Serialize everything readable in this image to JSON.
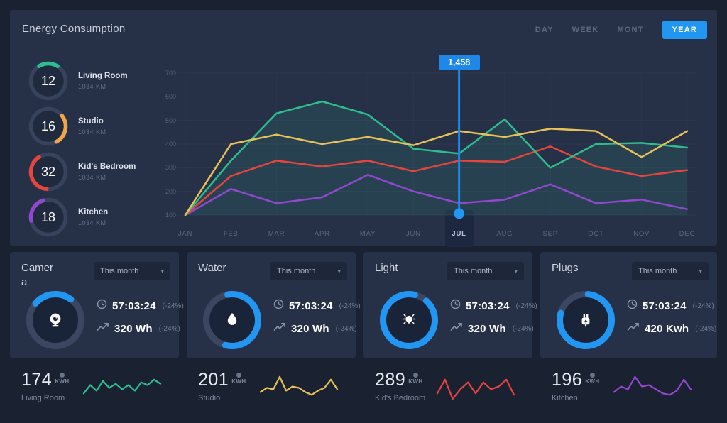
{
  "accent": "#2196f3",
  "header": {
    "title": "Energy Consumption",
    "tabs": [
      {
        "label": "DAY",
        "active": false
      },
      {
        "label": "WEEK",
        "active": false
      },
      {
        "label": "MONT",
        "active": false
      },
      {
        "label": "YEAR",
        "active": true
      }
    ]
  },
  "rooms": [
    {
      "value": "12",
      "name": "Living Room",
      "sub": "1034 KM",
      "color": "#2ebd8f",
      "arc_percent": 18,
      "arc_start": -122
    },
    {
      "value": "16",
      "name": "Studio",
      "sub": "1034 KM",
      "color": "#f2a44a",
      "arc_percent": 28,
      "arc_start": -38
    },
    {
      "value": "32",
      "name": "Kid's Bedroom",
      "sub": "1034 KM",
      "color": "#e6453e",
      "arc_percent": 40,
      "arc_start": 95
    },
    {
      "value": "18",
      "name": "Kitchen",
      "sub": "1034 KM",
      "color": "#9247cf",
      "arc_percent": 24,
      "arc_start": 168
    }
  ],
  "chart_data": {
    "type": "line",
    "x": [
      "JAN",
      "FEB",
      "MAR",
      "APR",
      "MAY",
      "JUN",
      "JUL",
      "AUG",
      "SEP",
      "OCT",
      "NOV",
      "DEC"
    ],
    "y_ticks": [
      700,
      600,
      500,
      400,
      300,
      200,
      100
    ],
    "ylim": [
      100,
      700
    ],
    "grid": true,
    "selected_index": 6,
    "tooltip": {
      "value": "1,458",
      "month": "JUL"
    },
    "series": [
      {
        "name": "Living Room",
        "color": "#2ebd8f",
        "fill": "rgba(46,189,143,0.13)",
        "values": [
          100,
          330,
          530,
          580,
          525,
          380,
          360,
          505,
          300,
          400,
          405,
          385
        ]
      },
      {
        "name": "Studio",
        "color": "#e9c257",
        "values": [
          100,
          400,
          440,
          400,
          430,
          395,
          455,
          430,
          465,
          455,
          345,
          455
        ]
      },
      {
        "name": "Kid's Bedroom",
        "color": "#e6453e",
        "values": [
          100,
          265,
          330,
          305,
          330,
          285,
          330,
          325,
          390,
          305,
          265,
          290
        ]
      },
      {
        "name": "Kitchen",
        "color": "#9247cf",
        "values": [
          100,
          210,
          150,
          175,
          270,
          200,
          150,
          165,
          230,
          150,
          165,
          125
        ]
      }
    ]
  },
  "cards": [
    {
      "title": "Camera",
      "icon": "webcam",
      "dropdown": "This month",
      "time": "57:03:24",
      "time_delta": "(-24%)",
      "usage": "320 Wh",
      "usage_delta": "(-24%)",
      "progress": 24,
      "progress_start": -140
    },
    {
      "title": "Water",
      "icon": "drop",
      "dropdown": "This month",
      "time": "57:03:24",
      "time_delta": "(-24%)",
      "usage": "320 Wh",
      "usage_delta": "(-24%)",
      "progress": 57,
      "progress_start": -100
    },
    {
      "title": "Light",
      "icon": "bulb",
      "dropdown": "This month",
      "time": "57:03:24",
      "time_delta": "(-24%)",
      "usage": "320 Wh",
      "usage_delta": "(-24%)",
      "progress": 92,
      "progress_start": -48
    },
    {
      "title": "Plugs",
      "icon": "plug",
      "dropdown": "This month",
      "time": "57:03:24",
      "time_delta": "(-24%)",
      "usage": "420 Kwh",
      "usage_delta": "(-24%)",
      "progress": 78,
      "progress_start": -85
    }
  ],
  "bottom_stats": [
    {
      "value": "174",
      "unit": "KWH",
      "label": "Living Room",
      "color": "#2ebd8f",
      "spark": [
        3,
        6,
        4,
        7.5,
        5,
        6.5,
        4.5,
        6,
        4,
        7,
        6,
        8,
        6.5
      ]
    },
    {
      "value": "201",
      "unit": "KWH",
      "label": "Studio",
      "color": "#e9c257",
      "spark": [
        3.5,
        5,
        4.5,
        9,
        4,
        5.5,
        5,
        3.5,
        2.5,
        4,
        5,
        8,
        4.5
      ]
    },
    {
      "value": "289",
      "unit": "KWH",
      "label": "Kid's Bedroom",
      "color": "#e6453e",
      "spark": [
        3,
        8,
        1,
        4.5,
        7,
        3,
        7,
        4.5,
        5.5,
        8,
        2.5
      ]
    },
    {
      "value": "196",
      "unit": "KWH",
      "label": "Kitchen",
      "color": "#9247cf",
      "spark": [
        3.5,
        5.5,
        4.5,
        9,
        5.5,
        6,
        4.5,
        3,
        2.5,
        4,
        8,
        4.5
      ]
    }
  ]
}
